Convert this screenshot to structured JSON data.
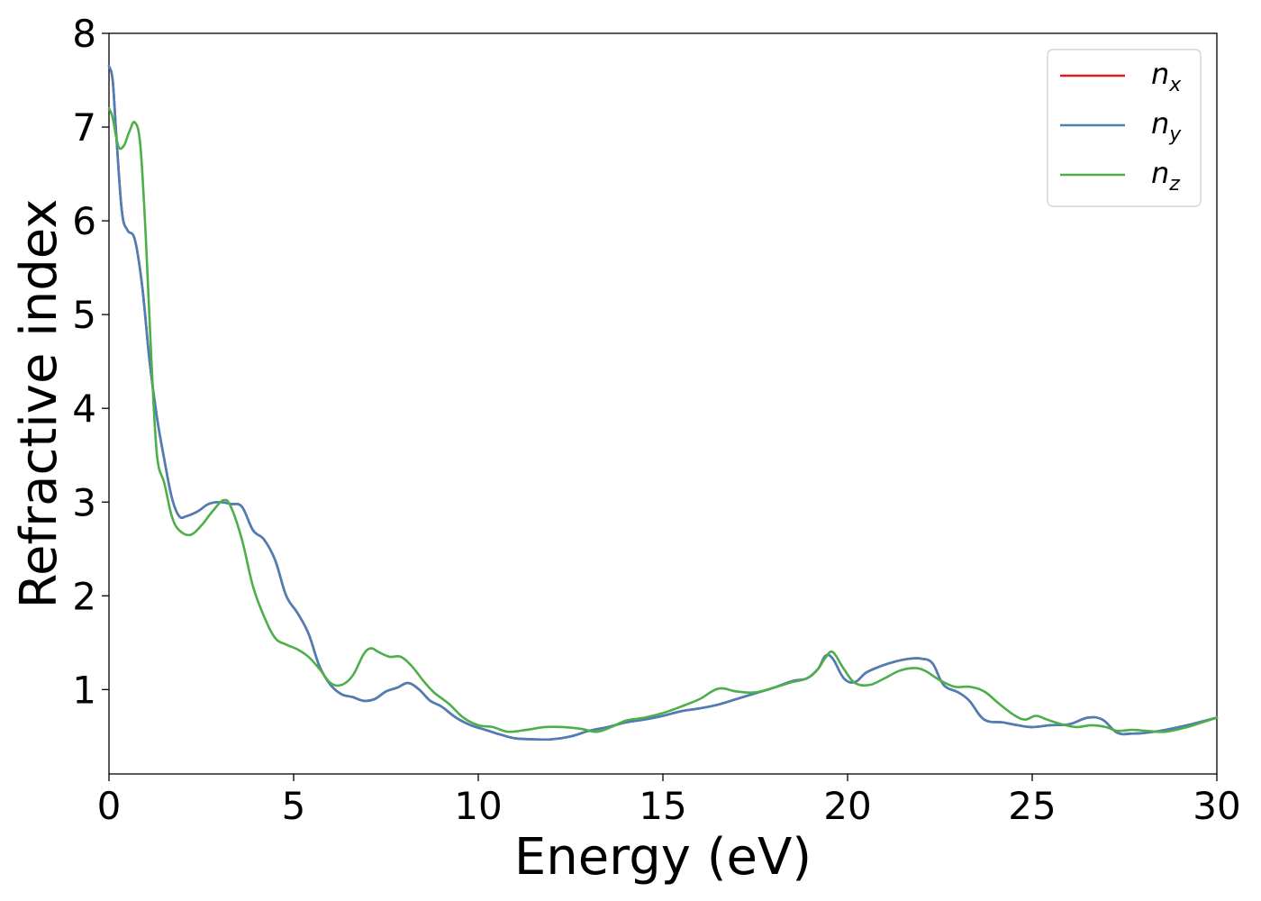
{
  "chart_data": {
    "type": "line",
    "title": "",
    "xlabel": "Energy (eV)",
    "ylabel": "Refractive index",
    "xlim": [
      0,
      30
    ],
    "ylim": [
      0.1,
      8
    ],
    "xticks": [
      0,
      5,
      10,
      15,
      20,
      25,
      30
    ],
    "yticks": [
      1,
      2,
      3,
      4,
      5,
      6,
      7,
      8
    ],
    "grid": false,
    "legend_position": "top-right",
    "series": [
      {
        "name": "n_x",
        "label_main": "n",
        "label_sub": "x",
        "color": "#e41a1c",
        "x": [
          0,
          0.1,
          0.2,
          0.35,
          0.5,
          0.7,
          0.9,
          1.1,
          1.3,
          1.5,
          1.7,
          1.9,
          2.1,
          2.4,
          2.7,
          3.0,
          3.3,
          3.6,
          3.9,
          4.2,
          4.5,
          4.8,
          5.1,
          5.4,
          5.7,
          6.0,
          6.3,
          6.6,
          6.9,
          7.2,
          7.5,
          7.8,
          8.1,
          8.4,
          8.7,
          9.0,
          9.4,
          9.8,
          10.2,
          10.6,
          11.0,
          11.5,
          12.0,
          12.5,
          13.0,
          13.5,
          14.0,
          14.5,
          15.0,
          15.5,
          16.0,
          16.5,
          17.0,
          17.5,
          18.0,
          18.5,
          18.9,
          19.2,
          19.4,
          19.6,
          19.9,
          20.2,
          20.5,
          20.9,
          21.3,
          21.7,
          22.0,
          22.3,
          22.6,
          23.0,
          23.3,
          23.7,
          24.2,
          24.6,
          25.0,
          25.5,
          26.0,
          26.5,
          26.9,
          27.3,
          27.7,
          28.1,
          28.6,
          29.2,
          29.6,
          30.0
        ],
        "y": [
          7.65,
          7.5,
          6.9,
          6.1,
          5.9,
          5.8,
          5.3,
          4.5,
          3.9,
          3.45,
          3.05,
          2.85,
          2.85,
          2.9,
          2.98,
          3.0,
          2.98,
          2.95,
          2.7,
          2.6,
          2.38,
          2.0,
          1.82,
          1.6,
          1.25,
          1.05,
          0.95,
          0.92,
          0.88,
          0.9,
          0.98,
          1.02,
          1.07,
          1.0,
          0.88,
          0.82,
          0.7,
          0.62,
          0.57,
          0.52,
          0.48,
          0.47,
          0.47,
          0.5,
          0.56,
          0.6,
          0.65,
          0.68,
          0.72,
          0.77,
          0.8,
          0.84,
          0.9,
          0.96,
          1.02,
          1.09,
          1.12,
          1.22,
          1.36,
          1.33,
          1.12,
          1.08,
          1.18,
          1.25,
          1.3,
          1.33,
          1.33,
          1.28,
          1.05,
          0.97,
          0.88,
          0.68,
          0.65,
          0.62,
          0.6,
          0.62,
          0.63,
          0.7,
          0.68,
          0.54,
          0.53,
          0.54,
          0.57,
          0.62,
          0.66,
          0.7
        ]
      },
      {
        "name": "n_y",
        "label_main": "n",
        "label_sub": "y",
        "color": "#4a7fb8",
        "x": [
          0,
          0.1,
          0.2,
          0.35,
          0.5,
          0.7,
          0.9,
          1.1,
          1.3,
          1.5,
          1.7,
          1.9,
          2.1,
          2.4,
          2.7,
          3.0,
          3.3,
          3.6,
          3.9,
          4.2,
          4.5,
          4.8,
          5.1,
          5.4,
          5.7,
          6.0,
          6.3,
          6.6,
          6.9,
          7.2,
          7.5,
          7.8,
          8.1,
          8.4,
          8.7,
          9.0,
          9.4,
          9.8,
          10.2,
          10.6,
          11.0,
          11.5,
          12.0,
          12.5,
          13.0,
          13.5,
          14.0,
          14.5,
          15.0,
          15.5,
          16.0,
          16.5,
          17.0,
          17.5,
          18.0,
          18.5,
          18.9,
          19.2,
          19.4,
          19.6,
          19.9,
          20.2,
          20.5,
          20.9,
          21.3,
          21.7,
          22.0,
          22.3,
          22.6,
          23.0,
          23.3,
          23.7,
          24.2,
          24.6,
          25.0,
          25.5,
          26.0,
          26.5,
          26.9,
          27.3,
          27.7,
          28.1,
          28.6,
          29.2,
          29.6,
          30.0
        ],
        "y": [
          7.65,
          7.5,
          6.9,
          6.1,
          5.9,
          5.8,
          5.3,
          4.5,
          3.9,
          3.45,
          3.05,
          2.85,
          2.85,
          2.9,
          2.98,
          3.0,
          2.98,
          2.95,
          2.7,
          2.6,
          2.38,
          2.0,
          1.82,
          1.6,
          1.25,
          1.05,
          0.95,
          0.92,
          0.88,
          0.9,
          0.98,
          1.02,
          1.07,
          1.0,
          0.88,
          0.82,
          0.7,
          0.62,
          0.57,
          0.52,
          0.48,
          0.47,
          0.47,
          0.5,
          0.56,
          0.6,
          0.65,
          0.68,
          0.72,
          0.77,
          0.8,
          0.84,
          0.9,
          0.96,
          1.02,
          1.09,
          1.12,
          1.22,
          1.36,
          1.33,
          1.12,
          1.08,
          1.18,
          1.25,
          1.3,
          1.33,
          1.33,
          1.28,
          1.05,
          0.97,
          0.88,
          0.68,
          0.65,
          0.62,
          0.6,
          0.62,
          0.63,
          0.7,
          0.68,
          0.54,
          0.53,
          0.54,
          0.57,
          0.62,
          0.66,
          0.7
        ]
      },
      {
        "name": "n_z",
        "label_main": "n",
        "label_sub": "z",
        "color": "#4daf4a",
        "x": [
          0,
          0.1,
          0.25,
          0.4,
          0.55,
          0.7,
          0.85,
          1.0,
          1.15,
          1.3,
          1.5,
          1.7,
          1.9,
          2.2,
          2.5,
          2.8,
          3.1,
          3.3,
          3.6,
          3.9,
          4.2,
          4.5,
          4.8,
          5.1,
          5.4,
          5.7,
          6.0,
          6.3,
          6.6,
          6.9,
          7.1,
          7.3,
          7.6,
          7.9,
          8.2,
          8.5,
          8.8,
          9.2,
          9.6,
          10.0,
          10.4,
          10.8,
          11.3,
          11.8,
          12.3,
          12.8,
          13.2,
          13.6,
          14.0,
          14.5,
          15.0,
          15.5,
          16.0,
          16.5,
          17.0,
          17.5,
          18.0,
          18.5,
          18.9,
          19.2,
          19.4,
          19.6,
          19.9,
          20.2,
          20.6,
          21.0,
          21.4,
          21.8,
          22.1,
          22.5,
          22.9,
          23.3,
          23.7,
          24.1,
          24.5,
          24.8,
          25.1,
          25.4,
          25.8,
          26.2,
          26.6,
          27.0,
          27.3,
          27.7,
          28.1,
          28.6,
          29.2,
          29.6,
          30.0
        ],
        "y": [
          7.2,
          7.1,
          6.8,
          6.8,
          6.95,
          7.05,
          6.8,
          5.8,
          4.5,
          3.5,
          3.2,
          2.85,
          2.7,
          2.65,
          2.75,
          2.9,
          3.02,
          2.95,
          2.6,
          2.1,
          1.78,
          1.55,
          1.48,
          1.43,
          1.35,
          1.22,
          1.07,
          1.05,
          1.15,
          1.38,
          1.44,
          1.4,
          1.35,
          1.35,
          1.25,
          1.1,
          0.97,
          0.85,
          0.7,
          0.62,
          0.6,
          0.55,
          0.57,
          0.6,
          0.6,
          0.58,
          0.55,
          0.6,
          0.67,
          0.7,
          0.75,
          0.82,
          0.9,
          1.01,
          0.98,
          0.97,
          1.02,
          1.08,
          1.12,
          1.22,
          1.34,
          1.4,
          1.22,
          1.07,
          1.05,
          1.12,
          1.2,
          1.23,
          1.2,
          1.1,
          1.03,
          1.03,
          0.98,
          0.85,
          0.73,
          0.68,
          0.72,
          0.68,
          0.63,
          0.6,
          0.62,
          0.6,
          0.56,
          0.57,
          0.56,
          0.55,
          0.6,
          0.65,
          0.7
        ]
      }
    ]
  }
}
